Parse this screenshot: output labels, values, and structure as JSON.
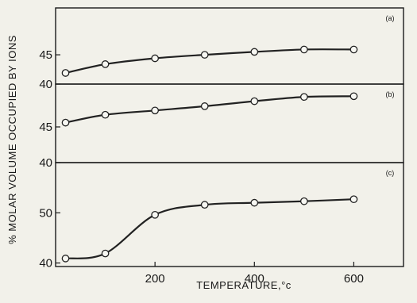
{
  "chart_data": {
    "type": "line",
    "xlabel": "TEMPERATURE,°c",
    "ylabel": "% MOLAR VOLUME OCCUPIED BY IONS",
    "xlim": [
      0,
      700
    ],
    "x_ticks": [
      200,
      400,
      600
    ],
    "x": [
      20,
      100,
      200,
      300,
      400,
      500,
      600
    ],
    "grid": false,
    "panels": [
      {
        "tag": "(a)",
        "ylim": [
          40,
          53
        ],
        "y_ticks": [
          40,
          45
        ],
        "values": [
          41.9,
          43.4,
          44.4,
          45.0,
          45.5,
          45.9,
          45.9
        ]
      },
      {
        "tag": "(b)",
        "ylim": [
          40,
          51
        ],
        "y_ticks": [
          40,
          45
        ],
        "values": [
          45.6,
          46.7,
          47.3,
          47.9,
          48.6,
          49.2,
          49.3
        ]
      },
      {
        "tag": "(c)",
        "ylim": [
          39.3,
          60
        ],
        "y_ticks": [
          40,
          50
        ],
        "values": [
          40.9,
          41.9,
          49.6,
          51.6,
          52.0,
          52.3,
          52.7
        ]
      }
    ]
  }
}
